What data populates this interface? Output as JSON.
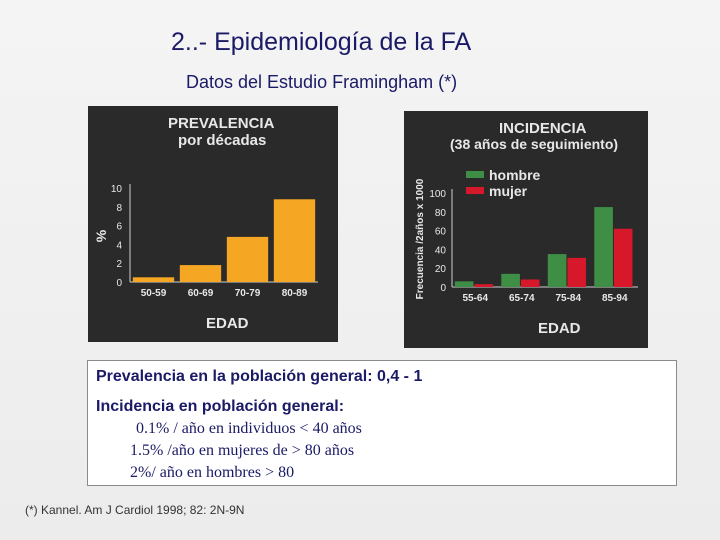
{
  "page": {
    "title": "2..- Epidemiología de la FA",
    "subtitle": "Datos del Estudio Framingham (*)"
  },
  "colors": {
    "panel_bg": "#2a2a2a",
    "prevalencia_bar": "#f5a623",
    "hombre": "#3e8f45",
    "mujer": "#d7182a",
    "chart_title": "#e8e8e8",
    "title_text": "#1a1a66"
  },
  "chart_data": [
    {
      "type": "bar",
      "title": "PREVALENCIA",
      "subtitle": "por décadas",
      "xlabel": "EDAD",
      "ylabel": "%",
      "categories": [
        "50-59",
        "60-69",
        "70-79",
        "80-89"
      ],
      "values": [
        0.5,
        1.8,
        4.8,
        8.8
      ],
      "ylim": [
        0,
        10
      ],
      "yticks": [
        "0",
        "2",
        "4",
        "6",
        "8",
        "10"
      ],
      "grid": false,
      "legend": "none"
    },
    {
      "type": "bar",
      "title": "INCIDENCIA",
      "subtitle": "(38 años de seguimiento)",
      "xlabel": "EDAD",
      "ylabel": "Frecuencia /2años x 1000",
      "categories": [
        "55-64",
        "65-74",
        "75-84",
        "85-94"
      ],
      "series": [
        {
          "name": "hombre",
          "values": [
            6,
            14,
            35,
            85
          ]
        },
        {
          "name": "mujer",
          "values": [
            3,
            8,
            31,
            62
          ]
        }
      ],
      "ylim": [
        0,
        100
      ],
      "yticks": [
        "0",
        "20",
        "40",
        "60",
        "80",
        "100"
      ],
      "grid": false,
      "legend": "top-right"
    }
  ],
  "info": {
    "line1": "Prevalencia en la población general: 0,4 - 1",
    "line2": "Incidencia en población general:",
    "items": [
      "0.1% / año en individuos < 40 años",
      "1.5% /año en mujeres de > 80 años",
      "2%/ año en hombres > 80"
    ]
  },
  "footnote": "(*) Kannel. Am J Cardiol 1998; 82: 2N-9N"
}
